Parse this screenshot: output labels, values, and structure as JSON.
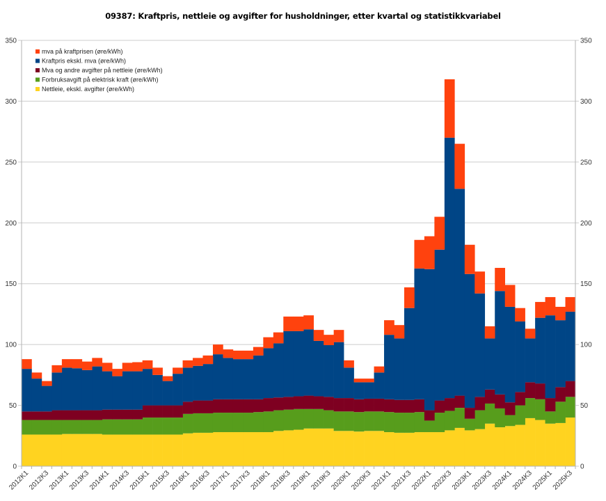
{
  "chart_data": {
    "type": "bar",
    "stacked": true,
    "title": "09387: Kraftpris, nettleie og avgifter for husholdninger, etter kvartal og statistikkvariabel",
    "xlabel": "",
    "ylabel": "",
    "ylim": [
      0,
      350
    ],
    "yticks": [
      0,
      50,
      100,
      150,
      200,
      250,
      300,
      350
    ],
    "grid": true,
    "legend_position": "top-left",
    "categories": [
      "2012K1",
      "2012K2",
      "2012K3",
      "2012K4",
      "2013K1",
      "2013K2",
      "2013K3",
      "2013K4",
      "2014K1",
      "2014K2",
      "2014K3",
      "2014K4",
      "2015K1",
      "2015K2",
      "2015K3",
      "2015K4",
      "2016K1",
      "2016K2",
      "2016K3",
      "2016K4",
      "2017K1",
      "2017K2",
      "2017K3",
      "2017K4",
      "2018K1",
      "2018K2",
      "2018K3",
      "2018K4",
      "2019K1",
      "2019K2",
      "2019K3",
      "2019K4",
      "2020K1",
      "2020K2",
      "2020K3",
      "2020K4",
      "2021K1",
      "2021K2",
      "2021K3",
      "2021K4",
      "2022K1",
      "2022K2",
      "2022K3",
      "2022K4",
      "2023K1",
      "2023K2",
      "2023K3",
      "2023K4",
      "2024K1",
      "2024K2",
      "2024K3",
      "2024K4",
      "2025K1",
      "2025K2",
      "2025K3"
    ],
    "x_tick_labels": [
      "2012K1",
      "2012K3",
      "2013K1",
      "2013K3",
      "2014K1",
      "2014K3",
      "2015K1",
      "2015K3",
      "2016K1",
      "2016K3",
      "2017K1",
      "2017K3",
      "2018K1",
      "2018K3",
      "2019K1",
      "2019K3",
      "2020K1",
      "2020K3",
      "2021K1",
      "2021K3",
      "2022K1",
      "2022K3",
      "2023K1",
      "2023K3",
      "2024K1",
      "2024K3",
      "2025K1",
      "2025K3"
    ],
    "series": [
      {
        "name": "Nettleie, ekskl. avgifter (øre/kWh)",
        "color": "#ffd320",
        "values": [
          26,
          26,
          26,
          26,
          26.5,
          26.5,
          26.5,
          26.5,
          26,
          26,
          26,
          26,
          26,
          26,
          26,
          26,
          27,
          27.5,
          27.5,
          28,
          28,
          28,
          28,
          28,
          28,
          29,
          29.5,
          30,
          31,
          31,
          31,
          29,
          29,
          28.5,
          29,
          29,
          28,
          27.5,
          27.5,
          28,
          28,
          28,
          29.5,
          31.5,
          29.5,
          30.5,
          35,
          32,
          33,
          34,
          39.5,
          38,
          35,
          35.5,
          40
        ]
      },
      {
        "name": "Forbruksavgift på elektrisk kraft (øre/kWh)",
        "color": "#579d1c",
        "values": [
          12,
          12,
          12,
          12,
          11.5,
          11.5,
          11.5,
          11.5,
          12.5,
          12.5,
          12.5,
          12.5,
          14,
          14,
          14,
          14,
          16,
          16,
          16,
          16,
          16,
          16,
          16,
          16.5,
          17,
          17,
          17,
          17,
          16,
          16,
          15,
          16,
          16,
          16,
          16,
          16,
          16.5,
          16.5,
          16.5,
          16.5,
          9.5,
          16,
          16,
          16.5,
          9.5,
          15.5,
          16.5,
          15.5,
          9,
          16,
          16.5,
          17,
          10,
          17.5,
          17
        ]
      },
      {
        "name": "Mva og andre avgifter på nettleie (øre/kWh)",
        "color": "#7e0021",
        "values": [
          7,
          7,
          7,
          8,
          8,
          8,
          8,
          8,
          8,
          8,
          8,
          8,
          10,
          10,
          10,
          10,
          10,
          10.5,
          10.5,
          11,
          11,
          11,
          11,
          10.5,
          11,
          10.5,
          10.5,
          10.5,
          11,
          10.5,
          11,
          11,
          11,
          10.5,
          10.5,
          10.5,
          10.5,
          10.5,
          10.5,
          10.5,
          8.5,
          10,
          10.5,
          10,
          9,
          11,
          11.5,
          11.5,
          10.5,
          11,
          13,
          13,
          11,
          12,
          13
        ]
      },
      {
        "name": "Kraftpris ekskl. mva (øre/kWh)",
        "color": "#004586",
        "values": [
          35,
          27,
          21,
          31,
          35,
          34.5,
          33,
          36,
          31.5,
          27.5,
          31.5,
          31.5,
          30,
          25,
          20,
          26,
          28,
          28.5,
          30,
          37,
          34,
          33,
          33,
          36,
          41,
          44.5,
          54,
          53.5,
          54.5,
          45.5,
          42.5,
          46,
          25,
          14,
          13.5,
          21.5,
          53,
          50.5,
          75.5,
          107.5,
          116,
          124,
          214,
          170,
          110,
          85,
          42,
          85,
          78.5,
          58,
          36,
          54,
          68,
          55,
          57
        ]
      },
      {
        "name": "mva på kraftprisen (øre/kWh)",
        "color": "#ff420e",
        "values": [
          8,
          5,
          4,
          6,
          7,
          7.5,
          7,
          7,
          7,
          6,
          7,
          7.5,
          7,
          6,
          4,
          5,
          6,
          6.5,
          7,
          8,
          7,
          7,
          7,
          7,
          9,
          9,
          12,
          12,
          11.5,
          9,
          8.5,
          10,
          6,
          3,
          3,
          5,
          12,
          11,
          17,
          23.5,
          27,
          27,
          48,
          37,
          24,
          18,
          10,
          19,
          18,
          11,
          8,
          13,
          15,
          11,
          12
        ]
      }
    ]
  }
}
